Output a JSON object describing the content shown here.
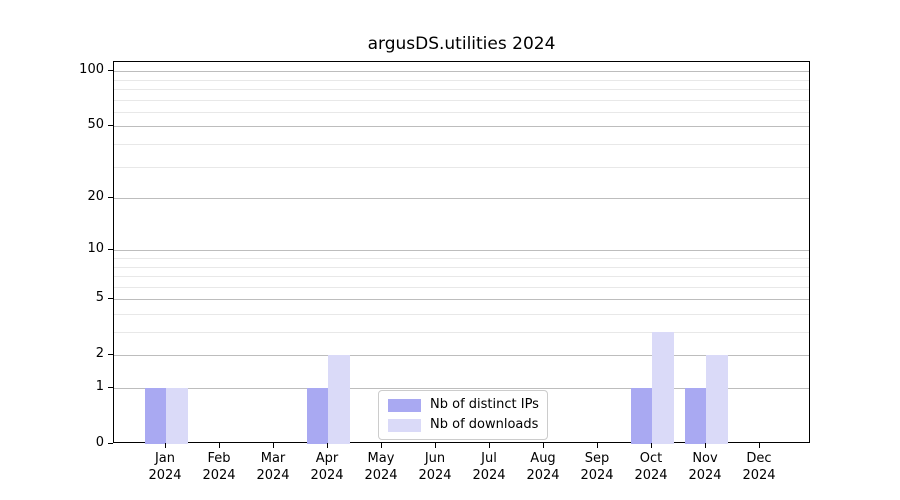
{
  "title": "argusDS.utilities 2024",
  "chart_data": {
    "type": "bar",
    "title": "argusDS.utilities 2024",
    "categories": [
      "Jan",
      "Feb",
      "Mar",
      "Apr",
      "May",
      "Jun",
      "Jul",
      "Aug",
      "Sep",
      "Oct",
      "Nov",
      "Dec"
    ],
    "category_year": "2024",
    "series": [
      {
        "name": "Nb of distinct IPs",
        "color": "#a9a9f2",
        "values": [
          1,
          0,
          0,
          1,
          0,
          0,
          0,
          0,
          0,
          1,
          1,
          0
        ]
      },
      {
        "name": "Nb of downloads",
        "color": "#dadaf8",
        "values": [
          1,
          0,
          0,
          2,
          0,
          0,
          0,
          0,
          0,
          3,
          2,
          0
        ]
      }
    ],
    "yscale": "log1p",
    "ylim": [
      0,
      112
    ],
    "yticks_major": [
      0,
      1,
      2,
      5,
      10,
      20,
      50,
      100
    ],
    "yticks_minor": [
      3,
      4,
      6,
      7,
      8,
      9,
      30,
      40,
      60,
      70,
      80,
      90
    ],
    "grid": "both",
    "legend_position": "lower center inside"
  },
  "colors": {
    "bar_distinct_ips": "#a9a9f2",
    "bar_downloads": "#dadaf8",
    "grid_major": "#bdbdbd",
    "grid_minor": "#e8e8e8",
    "axis": "#000000"
  }
}
